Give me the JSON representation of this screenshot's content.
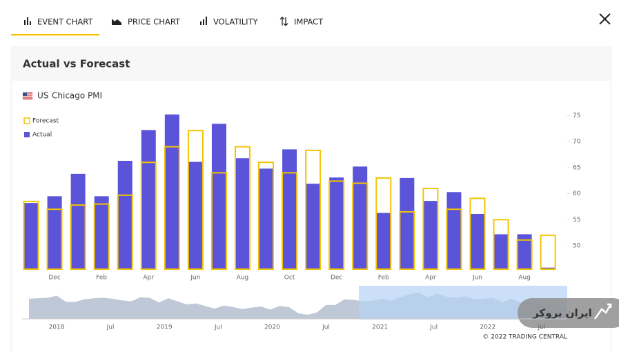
{
  "tabs": [
    "EVENT CHART",
    "PRICE CHART",
    "VOLATILITY",
    "IMPACT"
  ],
  "panel_title": "Actual vs Forecast",
  "chart_data": {
    "type": "bar",
    "country": "US",
    "title": "Chicago PMI",
    "categories": [
      null,
      "Dec",
      null,
      "Feb",
      null,
      "Apr",
      null,
      "Jun",
      null,
      "Aug",
      null,
      "Oct",
      null,
      "Dec",
      null,
      "Feb",
      null,
      "Apr",
      null,
      "Jun",
      null,
      "Aug",
      null
    ],
    "series": [
      {
        "name": "Forecast",
        "color": "#f5c400",
        "style": "outline",
        "values": [
          58.5,
          57.0,
          57.8,
          58.0,
          59.7,
          66.0,
          69.0,
          72.1,
          64.0,
          69.0,
          66.0,
          64.0,
          68.3,
          62.4,
          62.0,
          63.0,
          56.5,
          61.0,
          57.0,
          59.1,
          55.0,
          51.1,
          52.0
        ]
      },
      {
        "name": "Actual",
        "color": "#5b54d9",
        "style": "fill",
        "values": [
          58.2,
          59.5,
          63.8,
          59.5,
          66.3,
          72.2,
          75.2,
          66.1,
          73.4,
          66.8,
          64.8,
          68.5,
          61.9,
          63.1,
          65.2,
          56.3,
          63.0,
          58.6,
          60.3,
          56.1,
          52.2,
          52.2,
          45.8
        ]
      }
    ],
    "ylim": [
      45.5,
      76.5
    ],
    "yticks": [
      50,
      55,
      60,
      65,
      70,
      75
    ],
    "grid": false,
    "legend": "top-left"
  },
  "navigator": {
    "color": "#a9b6c8",
    "values": [
      63,
      64,
      65,
      69,
      57,
      57,
      62,
      64,
      65,
      63,
      60,
      58,
      66,
      65,
      56,
      64,
      58,
      52,
      54,
      49,
      44,
      50,
      47,
      43,
      46,
      48,
      42,
      49,
      47,
      35,
      32,
      36,
      51,
      51,
      62,
      61,
      58,
      59,
      63,
      59,
      66,
      72,
      75,
      66,
      73,
      67,
      65,
      68,
      62,
      63,
      65,
      56,
      63,
      56,
      60,
      56,
      52,
      52,
      45
    ],
    "labels": [
      "2018",
      "Jul",
      "2019",
      "Jul",
      "2020",
      "Jul",
      "2021",
      "Jul",
      "2022",
      "Jul"
    ]
  },
  "copyright": "© 2022 TRADING CENTRAL",
  "watermark": "ایران بروکر"
}
